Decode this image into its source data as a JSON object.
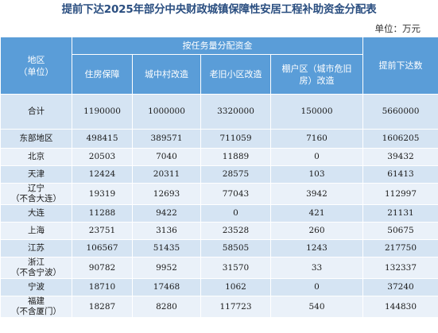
{
  "title": "提前下达2025年部分中央财政城镇保障性安居工程补助资金分配表",
  "unit": "单位：万元",
  "header": {
    "region_line1": "地区",
    "region_line2": "（单位）",
    "group": "按任务量分配资金",
    "col_housing": "住房保障",
    "col_village": "城中村改造",
    "col_old": "老旧小区改造",
    "col_shanty_line1": "棚户区（城市危旧",
    "col_shanty_line2": "房）改造",
    "col_total": "提前下达数"
  },
  "rows": [
    {
      "region": "合计",
      "note": "",
      "housing": "1190000",
      "village": "1000000",
      "old": "3320000",
      "shanty": "150000",
      "total": "5660000"
    },
    {
      "region": "东部地区",
      "note": "",
      "housing": "498415",
      "village": "389571",
      "old": "711059",
      "shanty": "7160",
      "total": "1606205"
    },
    {
      "region": "北京",
      "note": "",
      "housing": "20503",
      "village": "7040",
      "old": "11889",
      "shanty": "0",
      "total": "39432"
    },
    {
      "region": "天津",
      "note": "",
      "housing": "12424",
      "village": "20311",
      "old": "28575",
      "shanty": "103",
      "total": "61413"
    },
    {
      "region": "辽宁",
      "note": "（不含大连）",
      "housing": "19319",
      "village": "12693",
      "old": "77043",
      "shanty": "3942",
      "total": "112997"
    },
    {
      "region": "大连",
      "note": "",
      "housing": "11288",
      "village": "9422",
      "old": "0",
      "shanty": "421",
      "total": "21131"
    },
    {
      "region": "上海",
      "note": "",
      "housing": "23751",
      "village": "3136",
      "old": "23528",
      "shanty": "260",
      "total": "50675"
    },
    {
      "region": "江苏",
      "note": "",
      "housing": "106567",
      "village": "51435",
      "old": "58505",
      "shanty": "1243",
      "total": "217750"
    },
    {
      "region": "浙江",
      "note": "（不含宁波）",
      "housing": "90782",
      "village": "9952",
      "old": "31570",
      "shanty": "33",
      "total": "132337"
    },
    {
      "region": "宁波",
      "note": "",
      "housing": "18710",
      "village": "17468",
      "old": "1062",
      "shanty": "0",
      "total": "37240"
    },
    {
      "region": "福建",
      "note": "（不含厦门）",
      "housing": "18287",
      "village": "8280",
      "old": "117723",
      "shanty": "540",
      "total": "144830"
    }
  ],
  "colors": {
    "header_bg": "#5a9dd8",
    "row_dark": "#d5e4f3",
    "row_light": "#eaf1f9",
    "title": "#2a4e80"
  }
}
